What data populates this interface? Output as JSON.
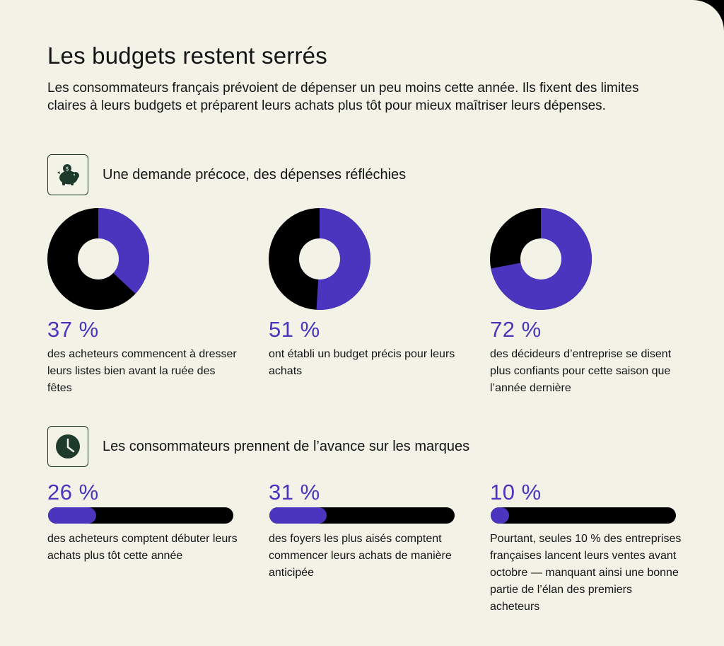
{
  "header": {
    "title": "Les budgets restent serrés",
    "intro": "Les consommateurs français prévoient de dépenser un peu moins cette année. Ils fixent des limites claires à leurs budgets et préparent leurs achats plus tôt pour mieux maîtriser leurs dépenses."
  },
  "colors": {
    "accent": "#4b35bf",
    "dark": "#000000",
    "background": "#f2f2e7",
    "icon": "#1e3a2a"
  },
  "section1": {
    "icon": "piggy-bank-icon",
    "heading": "Une demande précoce, des dépenses réfléchies"
  },
  "section2": {
    "icon": "clock-icon",
    "heading": "Les consommateurs prennent de l’avance sur les marques"
  },
  "chart_data": [
    {
      "type": "pie",
      "variant": "donut",
      "series": [
        {
          "pct_label": "37 %",
          "value": 37,
          "description": "des acheteurs commencent à dresser leurs listes bien avant la ruée des fêtes"
        },
        {
          "pct_label": "51 %",
          "value": 51,
          "description": "ont établi un budget précis pour leurs achats"
        },
        {
          "pct_label": "72 %",
          "value": 72,
          "description": "des décideurs d’entreprise se disent plus confiants pour cette saison que l’année dernière"
        }
      ]
    },
    {
      "type": "bar",
      "variant": "progress",
      "series": [
        {
          "pct_label": "26 %",
          "value": 26,
          "description": "des acheteurs comptent débuter leurs achats plus tôt cette année"
        },
        {
          "pct_label": "31 %",
          "value": 31,
          "description": "des foyers les plus aisés comptent commencer leurs achats de manière anticipée"
        },
        {
          "pct_label": "10 %",
          "value": 10,
          "description": "Pourtant, seules 10 % des entreprises françaises lancent leurs ventes avant octobre — manquant ainsi une bonne partie de l’élan des premiers acheteurs"
        }
      ]
    }
  ]
}
